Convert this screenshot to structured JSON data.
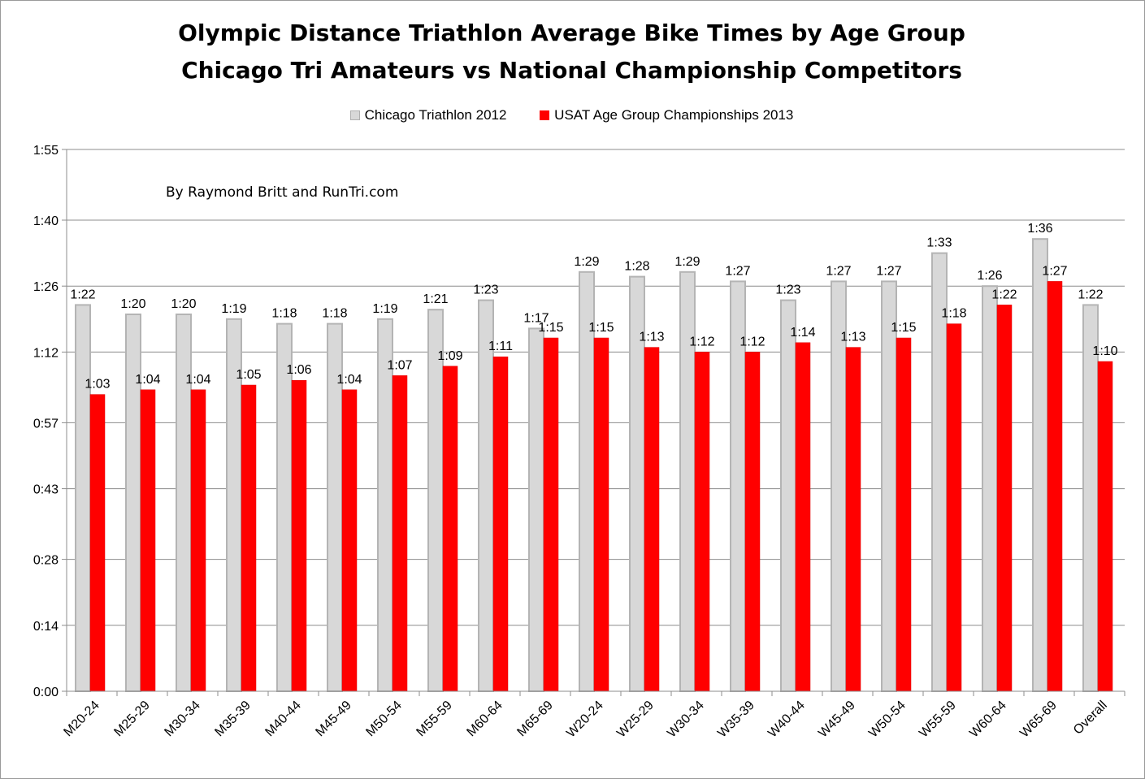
{
  "chart_data": {
    "type": "bar",
    "title": "Olympic Distance Triathlon Average Bike Times by Age Group",
    "subtitle": "Chicago Tri Amateurs vs National Championship Competitors",
    "annotation": "By Raymond Britt and RunTri.com",
    "xlabel": "",
    "ylabel": "",
    "ylim": [
      0,
      115
    ],
    "y_ticks": [
      0,
      14,
      28,
      43,
      57,
      72,
      86,
      100,
      115
    ],
    "y_tick_labels": [
      "0:00",
      "0:14",
      "0:28",
      "0:43",
      "0:57",
      "1:12",
      "1:26",
      "1:40",
      "1:55"
    ],
    "grid": true,
    "legend_position": "top-center",
    "categories": [
      "M20-24",
      "M25-29",
      "M30-34",
      "M35-39",
      "M40-44",
      "M45-49",
      "M50-54",
      "M55-59",
      "M60-64",
      "M65-69",
      "W20-24",
      "W25-29",
      "W30-34",
      "W35-39",
      "W40-44",
      "W45-49",
      "W50-54",
      "W55-59",
      "W60-64",
      "W65-69",
      "Overall"
    ],
    "series": [
      {
        "name": "Chicago Triathlon 2012",
        "color": "#d8d8d8",
        "edge_color": "#b4b4b4",
        "values": [
          82,
          80,
          80,
          79,
          78,
          78,
          79,
          81,
          83,
          77,
          89,
          88,
          89,
          87,
          83,
          87,
          87,
          93,
          86,
          96,
          82
        ],
        "labels": [
          "1:22",
          "1:20",
          "1:20",
          "1:19",
          "1:18",
          "1:18",
          "1:19",
          "1:21",
          "1:23",
          "1:17",
          "1:29",
          "1:28",
          "1:29",
          "1:27",
          "1:23",
          "1:27",
          "1:27",
          "1:33",
          "1:26",
          "1:36",
          "1:22"
        ]
      },
      {
        "name": "USAT Age Group Championships 2013",
        "color": "#ff0000",
        "edge_color": "#e00000",
        "values": [
          63,
          64,
          64,
          65,
          66,
          64,
          67,
          69,
          71,
          75,
          75,
          73,
          72,
          72,
          74,
          73,
          75,
          78,
          82,
          87,
          70
        ],
        "labels": [
          "1:03",
          "1:04",
          "1:04",
          "1:05",
          "1:06",
          "1:04",
          "1:07",
          "1:09",
          "1:11",
          "1:15",
          "1:15",
          "1:13",
          "1:12",
          "1:12",
          "1:14",
          "1:13",
          "1:15",
          "1:18",
          "1:22",
          "1:27",
          "1:10"
        ]
      }
    ]
  }
}
